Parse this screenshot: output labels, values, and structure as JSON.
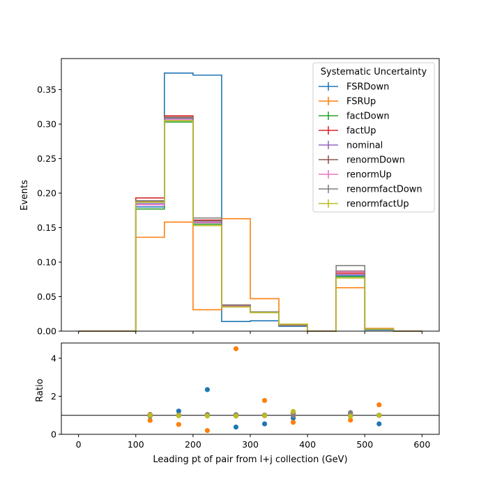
{
  "chart_data": [
    {
      "type": "line",
      "drawstyle": "steps",
      "xlabel": "",
      "ylabel": "Events",
      "xlim": [
        -30,
        630
      ],
      "ylim": [
        0,
        0.395
      ],
      "xticks": [
        0,
        100,
        200,
        300,
        400,
        500,
        600
      ],
      "yticks": [
        0.0,
        0.05,
        0.1,
        0.15,
        0.2,
        0.25,
        0.3,
        0.35
      ],
      "ytick_labels": [
        "0.00",
        "0.05",
        "0.10",
        "0.15",
        "0.20",
        "0.25",
        "0.30",
        "0.35"
      ],
      "bin_edges": [
        0,
        50,
        100,
        150,
        200,
        250,
        300,
        350,
        400,
        450,
        500,
        550,
        600
      ],
      "legend": {
        "title": "Systematic Uncertainty",
        "placement": "top-right"
      },
      "series": [
        {
          "name": "FSRDown",
          "color": "#1f77b4",
          "values": [
            0,
            0,
            0.18,
            0.374,
            0.371,
            0.014,
            0.015,
            0.007,
            0,
            0.08,
            0.002,
            0
          ]
        },
        {
          "name": "FSRUp",
          "color": "#ff7f0e",
          "values": [
            0,
            0,
            0.136,
            0.158,
            0.031,
            0.163,
            0.047,
            0.01,
            0,
            0.063,
            0.004,
            0
          ]
        },
        {
          "name": "factDown",
          "color": "#2ca02c",
          "values": [
            0,
            0,
            0.177,
            0.303,
            0.155,
            0.036,
            0.027,
            0.008,
            0,
            0.079,
            0.003,
            0
          ]
        },
        {
          "name": "factUp",
          "color": "#d62728",
          "values": [
            0,
            0,
            0.193,
            0.312,
            0.161,
            0.038,
            0.028,
            0.009,
            0,
            0.084,
            0.003,
            0
          ]
        },
        {
          "name": "nominal",
          "color": "#9467bd",
          "values": [
            0,
            0,
            0.185,
            0.308,
            0.158,
            0.037,
            0.028,
            0.008,
            0,
            0.082,
            0.003,
            0
          ]
        },
        {
          "name": "renormDown",
          "color": "#8c564b",
          "values": [
            0,
            0,
            0.188,
            0.31,
            0.16,
            0.037,
            0.028,
            0.008,
            0,
            0.087,
            0.003,
            0
          ]
        },
        {
          "name": "renormUp",
          "color": "#e377c2",
          "values": [
            0,
            0,
            0.183,
            0.306,
            0.157,
            0.036,
            0.027,
            0.008,
            0,
            0.086,
            0.003,
            0
          ]
        },
        {
          "name": "renormfactDown",
          "color": "#7f7f7f",
          "values": [
            0,
            0,
            0.189,
            0.309,
            0.164,
            0.038,
            0.028,
            0.008,
            0,
            0.095,
            0.003,
            0
          ]
        },
        {
          "name": "renormfactUp",
          "color": "#bcbd22",
          "values": [
            0,
            0,
            0.187,
            0.305,
            0.153,
            0.035,
            0.027,
            0.01,
            0,
            0.077,
            0.003,
            0
          ]
        }
      ]
    },
    {
      "type": "scatter",
      "xlabel": "Leading pt of pair from l+j collection (GeV)",
      "ylabel": "Ratio",
      "xlim": [
        -30,
        630
      ],
      "ylim": [
        0,
        4.8
      ],
      "xticks": [
        0,
        100,
        200,
        300,
        400,
        500,
        600
      ],
      "yticks": [
        0,
        2,
        4
      ],
      "reference_line": 1,
      "x": [
        125,
        175,
        225,
        275,
        325,
        375,
        475,
        525
      ],
      "series": [
        {
          "name": "FSRDown",
          "color": "#1f77b4",
          "values": [
            0.97,
            1.22,
            2.35,
            0.38,
            0.55,
            0.85,
            0.98,
            0.55
          ]
        },
        {
          "name": "FSRUp",
          "color": "#ff7f0e",
          "values": [
            0.73,
            0.52,
            0.2,
            4.5,
            1.78,
            0.63,
            0.75,
            1.55
          ]
        },
        {
          "name": "factDown",
          "color": "#2ca02c",
          "values": [
            0.96,
            0.98,
            0.98,
            0.97,
            0.98,
            1.0,
            0.97,
            1.0
          ]
        },
        {
          "name": "factUp",
          "color": "#d62728",
          "values": [
            1.04,
            1.01,
            1.02,
            1.02,
            1.01,
            1.1,
            1.02,
            1.0
          ]
        },
        {
          "name": "nominal",
          "color": "#9467bd",
          "values": [
            1.0,
            1.0,
            1.0,
            1.0,
            1.0,
            1.0,
            1.0,
            1.0
          ]
        },
        {
          "name": "renormDown",
          "color": "#8c564b",
          "values": [
            1.02,
            1.01,
            1.01,
            1.0,
            1.0,
            1.0,
            1.06,
            1.0
          ]
        },
        {
          "name": "renormUp",
          "color": "#e377c2",
          "values": [
            0.99,
            0.99,
            0.99,
            0.98,
            0.98,
            1.0,
            1.05,
            1.0
          ]
        },
        {
          "name": "renormfactDown",
          "color": "#7f7f7f",
          "values": [
            1.02,
            1.0,
            1.04,
            1.03,
            1.0,
            0.98,
            1.14,
            1.0
          ]
        },
        {
          "name": "renormfactUp",
          "color": "#bcbd22",
          "values": [
            1.01,
            0.99,
            0.97,
            0.96,
            0.98,
            1.2,
            0.95,
            1.0
          ]
        }
      ]
    }
  ]
}
